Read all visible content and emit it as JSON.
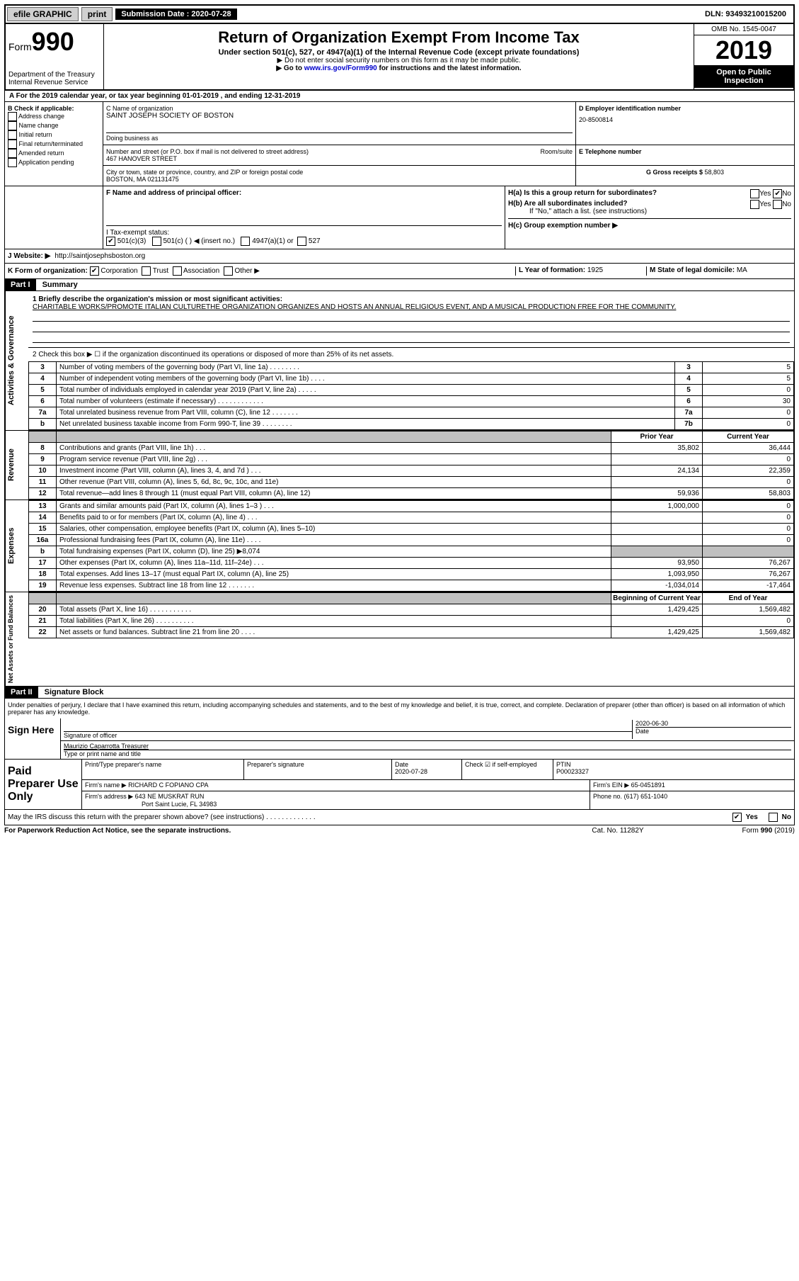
{
  "topbar": {
    "efile": "efile GRAPHIC",
    "print": "print",
    "submission_label": "Submission Date :",
    "submission_date": "2020-07-28",
    "dln_label": "DLN:",
    "dln": "93493210015200"
  },
  "header": {
    "form_label": "Form",
    "form_number": "990",
    "dept": "Department of the Treasury\nInternal Revenue Service",
    "title": "Return of Organization Exempt From Income Tax",
    "subtitle": "Under section 501(c), 527, or 4947(a)(1) of the Internal Revenue Code (except private foundations)",
    "note1": "▶ Do not enter social security numbers on this form as it may be made public.",
    "note2_pre": "▶ Go to ",
    "note2_link": "www.irs.gov/Form990",
    "note2_post": " for instructions and the latest information.",
    "omb": "OMB No. 1545-0047",
    "year": "2019",
    "open_public": "Open to Public Inspection"
  },
  "line_a": "A For the 2019 calendar year, or tax year beginning 01-01-2019    , and ending 12-31-2019",
  "section_b": {
    "header": "B Check if applicable:",
    "items": [
      "Address change",
      "Name change",
      "Initial return",
      "Final return/terminated",
      "Amended return",
      "Application pending"
    ]
  },
  "section_c": {
    "name_label": "C Name of organization",
    "name": "SAINT JOSEPH SOCIETY OF BOSTON",
    "dba_label": "Doing business as",
    "addr_label": "Number and street (or P.O. box if mail is not delivered to street address)",
    "room_label": "Room/suite",
    "addr": "467 HANOVER STREET",
    "city_label": "City or town, state or province, country, and ZIP or foreign postal code",
    "city": "BOSTON, MA  021131475"
  },
  "section_d": {
    "label": "D Employer identification number",
    "value": "20-8500814"
  },
  "section_e": {
    "label": "E Telephone number",
    "value": ""
  },
  "section_g": {
    "label": "G Gross receipts $",
    "value": "58,803"
  },
  "section_f": {
    "label": "F Name and address of principal officer:",
    "value": ""
  },
  "section_h": {
    "ha": "H(a)  Is this a group return for subordinates?",
    "hb": "H(b)  Are all subordinates included?",
    "hb_note": "If \"No,\" attach a list. (see instructions)",
    "hc": "H(c)  Group exemption number ▶",
    "yes": "Yes",
    "no": "No"
  },
  "section_i": {
    "label": "I  Tax-exempt status:",
    "opts": [
      "501(c)(3)",
      "501(c) (  ) ◀ (insert no.)",
      "4947(a)(1) or",
      "527"
    ]
  },
  "section_j": {
    "label": "J   Website: ▶",
    "value": "http://saintjosephsboston.org"
  },
  "section_k": {
    "label": "K Form of organization:",
    "opts": [
      "Corporation",
      "Trust",
      "Association",
      "Other ▶"
    ]
  },
  "section_l": {
    "label": "L Year of formation:",
    "value": "1925"
  },
  "section_m": {
    "label": "M State of legal domicile:",
    "value": "MA"
  },
  "part1": {
    "header": "Part I",
    "title": "Summary",
    "q1_label": "1  Briefly describe the organization's mission or most significant activities:",
    "q1_text": "CHARITABLE WORKS/PROMOTE ITALIAN CULTURETHE ORGANIZATION ORGANIZES AND HOSTS AN ANNUAL RELIGIOUS EVENT, AND A MUSICAL PRODUCTION FREE FOR THE COMMUNITY.",
    "q2": "2   Check this box ▶ ☐  if the organization discontinued its operations or disposed of more than 25% of its net assets.",
    "prior_year": "Prior Year",
    "current_year": "Current Year",
    "begin_year": "Beginning of Current Year",
    "end_year": "End of Year",
    "side_labels": [
      "Activities & Governance",
      "Revenue",
      "Expenses",
      "Net Assets or Fund Balances"
    ],
    "rows_gov": [
      {
        "n": "3",
        "d": "Number of voting members of the governing body (Part VI, line 1a)   .    .    .    .    .    .    .    .",
        "b": "3",
        "v": "5"
      },
      {
        "n": "4",
        "d": "Number of independent voting members of the governing body (Part VI, line 1b)  .    .    .    .",
        "b": "4",
        "v": "5"
      },
      {
        "n": "5",
        "d": "Total number of individuals employed in calendar year 2019 (Part V, line 2a)  .    .    .    .    .",
        "b": "5",
        "v": "0"
      },
      {
        "n": "6",
        "d": "Total number of volunteers (estimate if necessary)    .    .    .    .    .    .    .    .    .    .    .    .",
        "b": "6",
        "v": "30"
      },
      {
        "n": "7a",
        "d": "Total unrelated business revenue from Part VIII, column (C), line 12  .    .    .    .    .    .    .",
        "b": "7a",
        "v": "0"
      },
      {
        "n": "b",
        "d": "Net unrelated business taxable income from Form 990-T, line 39    .    .    .    .    .    .    .    .",
        "b": "7b",
        "v": "0"
      }
    ],
    "rows_rev": [
      {
        "n": "8",
        "d": "Contributions and grants (Part VIII, line 1h)    .    .    .",
        "p": "35,802",
        "c": "36,444"
      },
      {
        "n": "9",
        "d": "Program service revenue (Part VIII, line 2g)    .    .    .",
        "p": "",
        "c": "0"
      },
      {
        "n": "10",
        "d": "Investment income (Part VIII, column (A), lines 3, 4, and 7d )    .    .    .",
        "p": "24,134",
        "c": "22,359"
      },
      {
        "n": "11",
        "d": "Other revenue (Part VIII, column (A), lines 5, 6d, 8c, 9c, 10c, and 11e)",
        "p": "",
        "c": "0"
      },
      {
        "n": "12",
        "d": "Total revenue—add lines 8 through 11 (must equal Part VIII, column (A), line 12)",
        "p": "59,936",
        "c": "58,803"
      }
    ],
    "rows_exp": [
      {
        "n": "13",
        "d": "Grants and similar amounts paid (Part IX, column (A), lines 1–3 )  .    .    .",
        "p": "1,000,000",
        "c": "0"
      },
      {
        "n": "14",
        "d": "Benefits paid to or for members (Part IX, column (A), line 4)  .    .    .",
        "p": "",
        "c": "0"
      },
      {
        "n": "15",
        "d": "Salaries, other compensation, employee benefits (Part IX, column (A), lines 5–10)",
        "p": "",
        "c": "0"
      },
      {
        "n": "16a",
        "d": "Professional fundraising fees (Part IX, column (A), line 11e)  .    .    .    .",
        "p": "",
        "c": "0"
      },
      {
        "n": "b",
        "d": "Total fundraising expenses (Part IX, column (D), line 25) ▶8,074",
        "p": "SHADE",
        "c": "SHADE"
      },
      {
        "n": "17",
        "d": "Other expenses (Part IX, column (A), lines 11a–11d, 11f–24e)   .    .    .",
        "p": "93,950",
        "c": "76,267"
      },
      {
        "n": "18",
        "d": "Total expenses. Add lines 13–17 (must equal Part IX, column (A), line 25)",
        "p": "1,093,950",
        "c": "76,267"
      },
      {
        "n": "19",
        "d": "Revenue less expenses. Subtract line 18 from line 12 .    .    .    .    .    .    .",
        "p": "-1,034,014",
        "c": "-17,464"
      }
    ],
    "rows_net": [
      {
        "n": "20",
        "d": "Total assets (Part X, line 16)  .    .    .    .    .    .    .    .    .    .    .",
        "p": "1,429,425",
        "c": "1,569,482"
      },
      {
        "n": "21",
        "d": "Total liabilities (Part X, line 26)  .    .    .    .    .    .    .    .    .    .",
        "p": "",
        "c": "0"
      },
      {
        "n": "22",
        "d": "Net assets or fund balances. Subtract line 21 from line 20   .    .    .    .",
        "p": "1,429,425",
        "c": "1,569,482"
      }
    ]
  },
  "part2": {
    "header": "Part II",
    "title": "Signature Block",
    "declaration": "Under penalties of perjury, I declare that I have examined this return, including accompanying schedules and statements, and to the best of my knowledge and belief, it is true, correct, and complete. Declaration of preparer (other than officer) is based on all information of which preparer has any knowledge.",
    "sign_here": "Sign Here",
    "sig_officer": "Signature of officer",
    "date": "Date",
    "date_val": "2020-06-30",
    "name_title": "Maurizio Caparrotta  Treasurer",
    "name_title_label": "Type or print name and title"
  },
  "paid": {
    "label": "Paid Preparer Use Only",
    "print_name_label": "Print/Type preparer's name",
    "sig_label": "Preparer's signature",
    "date_label": "Date",
    "date_val": "2020-07-28",
    "check_label": "Check ☑ if self-employed",
    "ptin_label": "PTIN",
    "ptin": "P00023327",
    "firm_name_label": "Firm's name    ▶",
    "firm_name": "RICHARD C FOPIANO CPA",
    "firm_ein_label": "Firm's EIN ▶",
    "firm_ein": "65-0451891",
    "firm_addr_label": "Firm's address ▶",
    "firm_addr1": "643 NE MUSKRAT RUN",
    "firm_addr2": "Port Saint Lucie, FL  34983",
    "phone_label": "Phone no.",
    "phone": "(617) 651-1040",
    "discuss": "May the IRS discuss this return with the preparer shown above? (see instructions)   .    .    .    .    .    .    .    .    .    .    .    .    .",
    "yes": "Yes",
    "no": "No"
  },
  "footer": {
    "pra": "For Paperwork Reduction Act Notice, see the separate instructions.",
    "cat": "Cat. No. 11282Y",
    "form": "Form 990 (2019)"
  }
}
